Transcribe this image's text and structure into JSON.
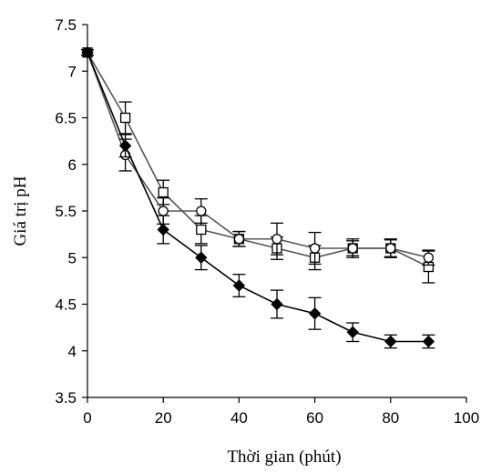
{
  "chart_data": {
    "type": "line",
    "title": "",
    "xlabel": "Thời gian (phút)",
    "ylabel": "Giá trị pH",
    "xlim": [
      0,
      100
    ],
    "ylim": [
      3.5,
      7.5
    ],
    "x_ticks": [
      0,
      20,
      40,
      60,
      80,
      100
    ],
    "y_ticks": [
      3.5,
      4,
      4.5,
      5,
      5.5,
      6,
      6.5,
      7,
      7.5
    ],
    "x_tick_labels": [
      "0",
      "20",
      "40",
      "60",
      "80",
      "100"
    ],
    "y_tick_labels": [
      "3.5",
      "4",
      "4.5",
      "5",
      "5.5",
      "6",
      "6.5",
      "7",
      "7.5"
    ],
    "grid": false,
    "legend": "none",
    "x": [
      0,
      10,
      20,
      30,
      40,
      50,
      60,
      70,
      80,
      90
    ],
    "series": [
      {
        "marker": "diamond-filled",
        "color": "#000000",
        "values": [
          7.2,
          6.2,
          5.3,
          5.0,
          4.7,
          4.5,
          4.4,
          4.2,
          4.1,
          4.1
        ],
        "errors": [
          0.03,
          0.12,
          0.15,
          0.13,
          0.12,
          0.15,
          0.17,
          0.1,
          0.07,
          0.07
        ]
      },
      {
        "marker": "square-open",
        "color": "#555555",
        "values": [
          7.2,
          6.5,
          5.7,
          5.3,
          5.2,
          5.1,
          5.0,
          5.1,
          5.1,
          4.9
        ],
        "errors": [
          0.03,
          0.17,
          0.13,
          0.15,
          0.08,
          0.12,
          0.13,
          0.1,
          0.09,
          0.17
        ]
      },
      {
        "marker": "circle-open",
        "color": "#555555",
        "values": [
          7.2,
          6.1,
          5.5,
          5.5,
          5.2,
          5.2,
          5.1,
          5.1,
          5.1,
          5.0
        ],
        "errors": [
          0.03,
          0.17,
          0.14,
          0.13,
          0.08,
          0.17,
          0.17,
          0.08,
          0.1,
          0.08
        ]
      }
    ]
  }
}
